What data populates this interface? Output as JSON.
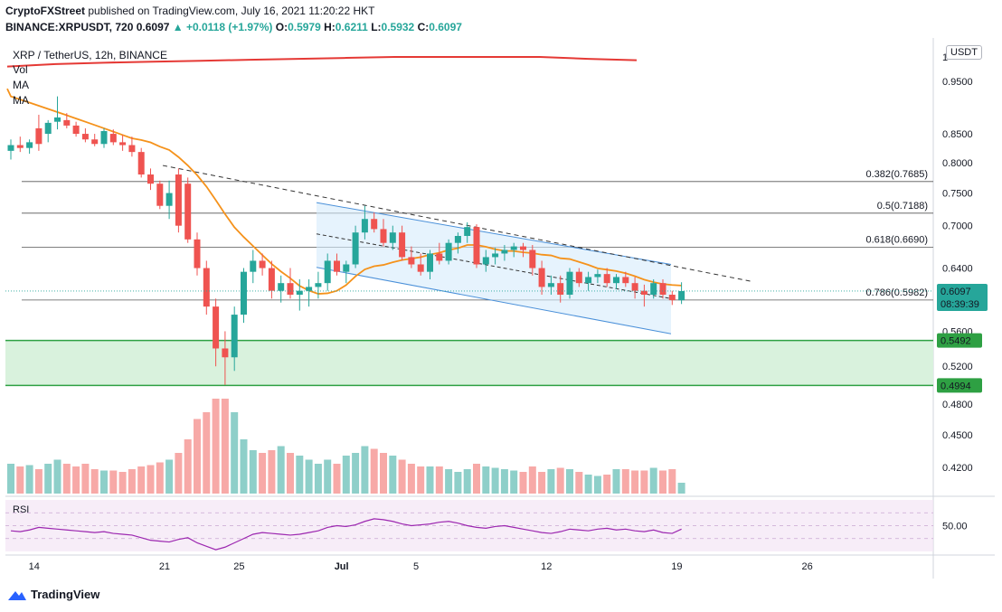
{
  "header": {
    "publisher": "CryptoFXStreet",
    "published_text": "published on TradingView.com, July 16, 2021 11:20:22 HKT",
    "symbol_line_prefix": "BINANCE:XRPUSDT, 720",
    "price": "0.6097",
    "change": "▲ +0.0118 (+1.97%)",
    "ohlc_o_label": "O:",
    "ohlc_o": "0.5979",
    "ohlc_h_label": "H:",
    "ohlc_h": "0.6211",
    "ohlc_l_label": "L:",
    "ohlc_l": "0.5932",
    "ohlc_c_label": "C:",
    "ohlc_c": "0.6097"
  },
  "legend": {
    "title": "XRP / TetherUS, 12h, BINANCE",
    "items": [
      "Vol",
      "MA",
      "MA"
    ]
  },
  "currency_button": "USDT",
  "footer": {
    "brand": "TradingView"
  },
  "colors": {
    "up": "#26a69a",
    "down": "#ef5350",
    "up_vol": "#8ecfc9",
    "down_vol": "#f7a9a7",
    "ma_long": "#e53935",
    "ma_short": "#f5921b",
    "support_zone": "#2ea043",
    "channel": "#4a90d9",
    "rsi": "#9c27b0"
  },
  "chart_data": {
    "type": "candlestick",
    "symbol": "XRP / TetherUS",
    "timeframe": "12h",
    "exchange": "BINANCE",
    "y_axis": {
      "scale": "log",
      "range": [
        0.384,
        1.015
      ],
      "tick_labels": [
        "1",
        "0.9500",
        "0.8500",
        "0.8000",
        "0.7500",
        "0.7000",
        "0.6400",
        "0.5600",
        "0.5200",
        "0.4800",
        "0.4500",
        "0.4200"
      ],
      "tick_values": [
        1.0,
        0.95,
        0.85,
        0.8,
        0.75,
        0.7,
        0.64,
        0.56,
        0.52,
        0.48,
        0.45,
        0.42
      ]
    },
    "x_axis": {
      "tick_labels": [
        "14",
        "21",
        "25",
        "Jul",
        "5",
        "12",
        "19",
        "26"
      ],
      "tick_index": [
        2.5,
        16.5,
        24.5,
        35.5,
        43.5,
        57.5,
        71.5,
        85.5
      ]
    },
    "candles_ohlc": [
      [
        0.82,
        0.84,
        0.805,
        0.83
      ],
      [
        0.83,
        0.845,
        0.818,
        0.825
      ],
      [
        0.825,
        0.84,
        0.815,
        0.835
      ],
      [
        0.86,
        0.885,
        0.82,
        0.832
      ],
      [
        0.85,
        0.875,
        0.835,
        0.87
      ],
      [
        0.872,
        0.92,
        0.858,
        0.88
      ],
      [
        0.875,
        0.888,
        0.86,
        0.865
      ],
      [
        0.865,
        0.872,
        0.845,
        0.85
      ],
      [
        0.85,
        0.86,
        0.835,
        0.84
      ],
      [
        0.84,
        0.85,
        0.828,
        0.832
      ],
      [
        0.832,
        0.86,
        0.825,
        0.855
      ],
      [
        0.85,
        0.858,
        0.83,
        0.835
      ],
      [
        0.835,
        0.848,
        0.82,
        0.83
      ],
      [
        0.83,
        0.845,
        0.81,
        0.818
      ],
      [
        0.818,
        0.825,
        0.775,
        0.78
      ],
      [
        0.78,
        0.79,
        0.755,
        0.765
      ],
      [
        0.765,
        0.77,
        0.725,
        0.73
      ],
      [
        0.73,
        0.77,
        0.71,
        0.75
      ],
      [
        0.78,
        0.79,
        0.69,
        0.7
      ],
      [
        0.765,
        0.775,
        0.675,
        0.68
      ],
      [
        0.68,
        0.69,
        0.63,
        0.64
      ],
      [
        0.64,
        0.65,
        0.58,
        0.59
      ],
      [
        0.59,
        0.6,
        0.52,
        0.54
      ],
      [
        0.54,
        0.56,
        0.5,
        0.53
      ],
      [
        0.53,
        0.59,
        0.515,
        0.58
      ],
      [
        0.58,
        0.64,
        0.57,
        0.635
      ],
      [
        0.635,
        0.665,
        0.62,
        0.65
      ],
      [
        0.65,
        0.66,
        0.63,
        0.64
      ],
      [
        0.64,
        0.65,
        0.6,
        0.61
      ],
      [
        0.61,
        0.63,
        0.595,
        0.62
      ],
      [
        0.62,
        0.64,
        0.6,
        0.605
      ],
      [
        0.605,
        0.625,
        0.585,
        0.61
      ],
      [
        0.61,
        0.625,
        0.59,
        0.615
      ],
      [
        0.615,
        0.635,
        0.6,
        0.62
      ],
      [
        0.62,
        0.66,
        0.61,
        0.65
      ],
      [
        0.65,
        0.66,
        0.63,
        0.635
      ],
      [
        0.635,
        0.65,
        0.62,
        0.645
      ],
      [
        0.645,
        0.7,
        0.64,
        0.69
      ],
      [
        0.69,
        0.73,
        0.68,
        0.71
      ],
      [
        0.71,
        0.72,
        0.69,
        0.695
      ],
      [
        0.695,
        0.71,
        0.67,
        0.675
      ],
      [
        0.675,
        0.7,
        0.665,
        0.69
      ],
      [
        0.69,
        0.7,
        0.65,
        0.655
      ],
      [
        0.655,
        0.67,
        0.64,
        0.645
      ],
      [
        0.645,
        0.66,
        0.63,
        0.635
      ],
      [
        0.635,
        0.665,
        0.625,
        0.66
      ],
      [
        0.66,
        0.675,
        0.645,
        0.65
      ],
      [
        0.65,
        0.68,
        0.645,
        0.675
      ],
      [
        0.675,
        0.69,
        0.66,
        0.685
      ],
      [
        0.685,
        0.705,
        0.675,
        0.698
      ],
      [
        0.698,
        0.702,
        0.64,
        0.645
      ],
      [
        0.645,
        0.665,
        0.635,
        0.655
      ],
      [
        0.655,
        0.668,
        0.645,
        0.66
      ],
      [
        0.66,
        0.672,
        0.65,
        0.665
      ],
      [
        0.665,
        0.675,
        0.655,
        0.67
      ],
      [
        0.67,
        0.675,
        0.655,
        0.665
      ],
      [
        0.665,
        0.672,
        0.63,
        0.64
      ],
      [
        0.64,
        0.65,
        0.605,
        0.615
      ],
      [
        0.615,
        0.63,
        0.605,
        0.62
      ],
      [
        0.62,
        0.63,
        0.595,
        0.605
      ],
      [
        0.605,
        0.64,
        0.6,
        0.635
      ],
      [
        0.635,
        0.64,
        0.615,
        0.62
      ],
      [
        0.62,
        0.635,
        0.61,
        0.628
      ],
      [
        0.628,
        0.638,
        0.62,
        0.632
      ],
      [
        0.632,
        0.64,
        0.615,
        0.62
      ],
      [
        0.62,
        0.632,
        0.612,
        0.628
      ],
      [
        0.628,
        0.635,
        0.615,
        0.62
      ],
      [
        0.62,
        0.628,
        0.6,
        0.61
      ],
      [
        0.61,
        0.618,
        0.59,
        0.605
      ],
      [
        0.605,
        0.625,
        0.6,
        0.62
      ],
      [
        0.62,
        0.625,
        0.6,
        0.605
      ],
      [
        0.605,
        0.61,
        0.592,
        0.598
      ],
      [
        0.5979,
        0.6211,
        0.5932,
        0.6097
      ]
    ],
    "volume_relative": [
      0.22,
      0.2,
      0.21,
      0.18,
      0.22,
      0.25,
      0.22,
      0.2,
      0.22,
      0.18,
      0.17,
      0.17,
      0.16,
      0.18,
      0.2,
      0.21,
      0.23,
      0.25,
      0.3,
      0.4,
      0.55,
      0.6,
      0.7,
      0.7,
      0.6,
      0.4,
      0.32,
      0.3,
      0.32,
      0.35,
      0.3,
      0.28,
      0.25,
      0.22,
      0.25,
      0.22,
      0.28,
      0.3,
      0.35,
      0.33,
      0.3,
      0.28,
      0.25,
      0.22,
      0.2,
      0.2,
      0.2,
      0.18,
      0.16,
      0.18,
      0.22,
      0.2,
      0.19,
      0.18,
      0.17,
      0.16,
      0.2,
      0.16,
      0.18,
      0.19,
      0.18,
      0.16,
      0.14,
      0.13,
      0.14,
      0.18,
      0.18,
      0.17,
      0.17,
      0.19,
      0.17,
      0.18,
      0.08
    ],
    "ma_long": {
      "color": "#e53935",
      "values": [
        0.98,
        0.985,
        0.988,
        0.99,
        0.992,
        0.994,
        0.996,
        0.998,
        1.0,
        1.0,
        1.0,
        1.0,
        0.996,
        0.993
      ]
    },
    "ma_short": {
      "color": "#f5921b"
    },
    "fibonacci_levels": [
      {
        "label": "0.382(0.7685)",
        "price": 0.7685
      },
      {
        "label": "0.5(0.7188)",
        "price": 0.7188
      },
      {
        "label": "0.618(0.6690)",
        "price": 0.669
      },
      {
        "label": "0.786(0.5982)",
        "price": 0.5982
      }
    ],
    "support_zone": {
      "top": 0.5492,
      "bottom": 0.4994,
      "top_label": "0.5492",
      "bottom_label": "0.4994"
    },
    "last_price": {
      "value": "0.6097",
      "countdown": "08:39:39"
    },
    "rsi": {
      "label": "RSI",
      "tick": "50.00",
      "values": [
        44,
        43,
        45,
        48,
        47,
        46,
        45,
        44,
        43,
        42,
        43,
        41,
        40,
        39,
        36,
        33,
        32,
        31,
        34,
        36,
        30,
        26,
        22,
        25,
        30,
        35,
        40,
        42,
        41,
        40,
        39,
        40,
        42,
        44,
        48,
        50,
        49,
        51,
        55,
        58,
        57,
        55,
        52,
        50,
        51,
        52,
        54,
        55,
        53,
        50,
        48,
        47,
        49,
        50,
        48,
        46,
        44,
        42,
        41,
        43,
        46,
        45,
        44,
        46,
        47,
        45,
        46,
        44,
        43,
        45,
        42,
        41,
        46
      ]
    }
  }
}
